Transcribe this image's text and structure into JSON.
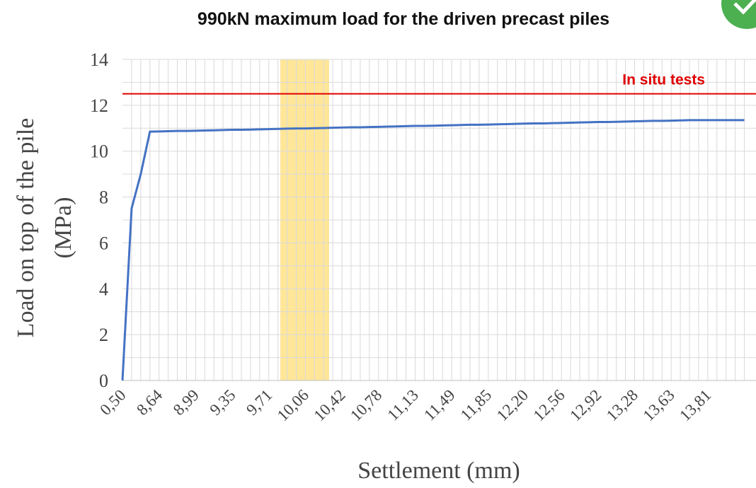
{
  "chart_data": {
    "type": "line",
    "title": "990kN maximum load for the driven precast piles",
    "y_label": [
      "Load on top of the pile",
      "(MPa)"
    ],
    "x_label": "Settlement (mm)",
    "categories": [
      "0,50",
      null,
      null,
      null,
      "8,64",
      null,
      null,
      null,
      "8,99",
      null,
      null,
      null,
      "9,35",
      null,
      null,
      null,
      "9,71",
      null,
      null,
      null,
      "10,06",
      null,
      null,
      null,
      "10,42",
      null,
      null,
      null,
      "10,78",
      null,
      null,
      null,
      "11,13",
      null,
      null,
      null,
      "11,49",
      null,
      null,
      null,
      "11,85",
      null,
      null,
      null,
      "12,20",
      null,
      null,
      null,
      "12,56",
      null,
      null,
      null,
      "12,92",
      null,
      null,
      null,
      "13,28",
      null,
      null,
      null,
      "13,63",
      null,
      null,
      null,
      "13,81",
      null,
      null,
      null,
      null
    ],
    "series": [
      {
        "color": "#4472c4",
        "values": [
          0,
          7.5,
          9.0,
          10.85,
          10.86,
          10.87,
          10.88,
          10.88,
          10.89,
          10.9,
          10.91,
          10.92,
          10.93,
          10.93,
          10.94,
          10.95,
          10.96,
          10.97,
          10.98,
          10.99,
          10.99,
          11.0,
          11.01,
          11.02,
          11.03,
          11.04,
          11.04,
          11.05,
          11.06,
          11.07,
          11.08,
          11.09,
          11.1,
          11.1,
          11.11,
          11.12,
          11.13,
          11.14,
          11.15,
          11.15,
          11.16,
          11.17,
          11.18,
          11.19,
          11.2,
          11.21,
          11.21,
          11.22,
          11.23,
          11.24,
          11.25,
          11.26,
          11.27,
          11.27,
          11.28,
          11.29,
          11.3,
          11.31,
          11.32,
          11.32,
          11.33,
          11.34,
          11.35,
          11.35,
          11.35,
          11.35,
          11.35,
          11.35,
          11.35
        ]
      }
    ],
    "reference_line": {
      "value": 12.5,
      "label": "In situ tests",
      "color": "#e00000"
    },
    "ylim": [
      0,
      14
    ],
    "yticks": [
      0,
      2,
      4,
      6,
      8,
      10,
      12,
      14
    ],
    "ygrid": [
      1,
      3,
      5,
      7,
      9,
      11,
      13
    ],
    "grid": true
  }
}
